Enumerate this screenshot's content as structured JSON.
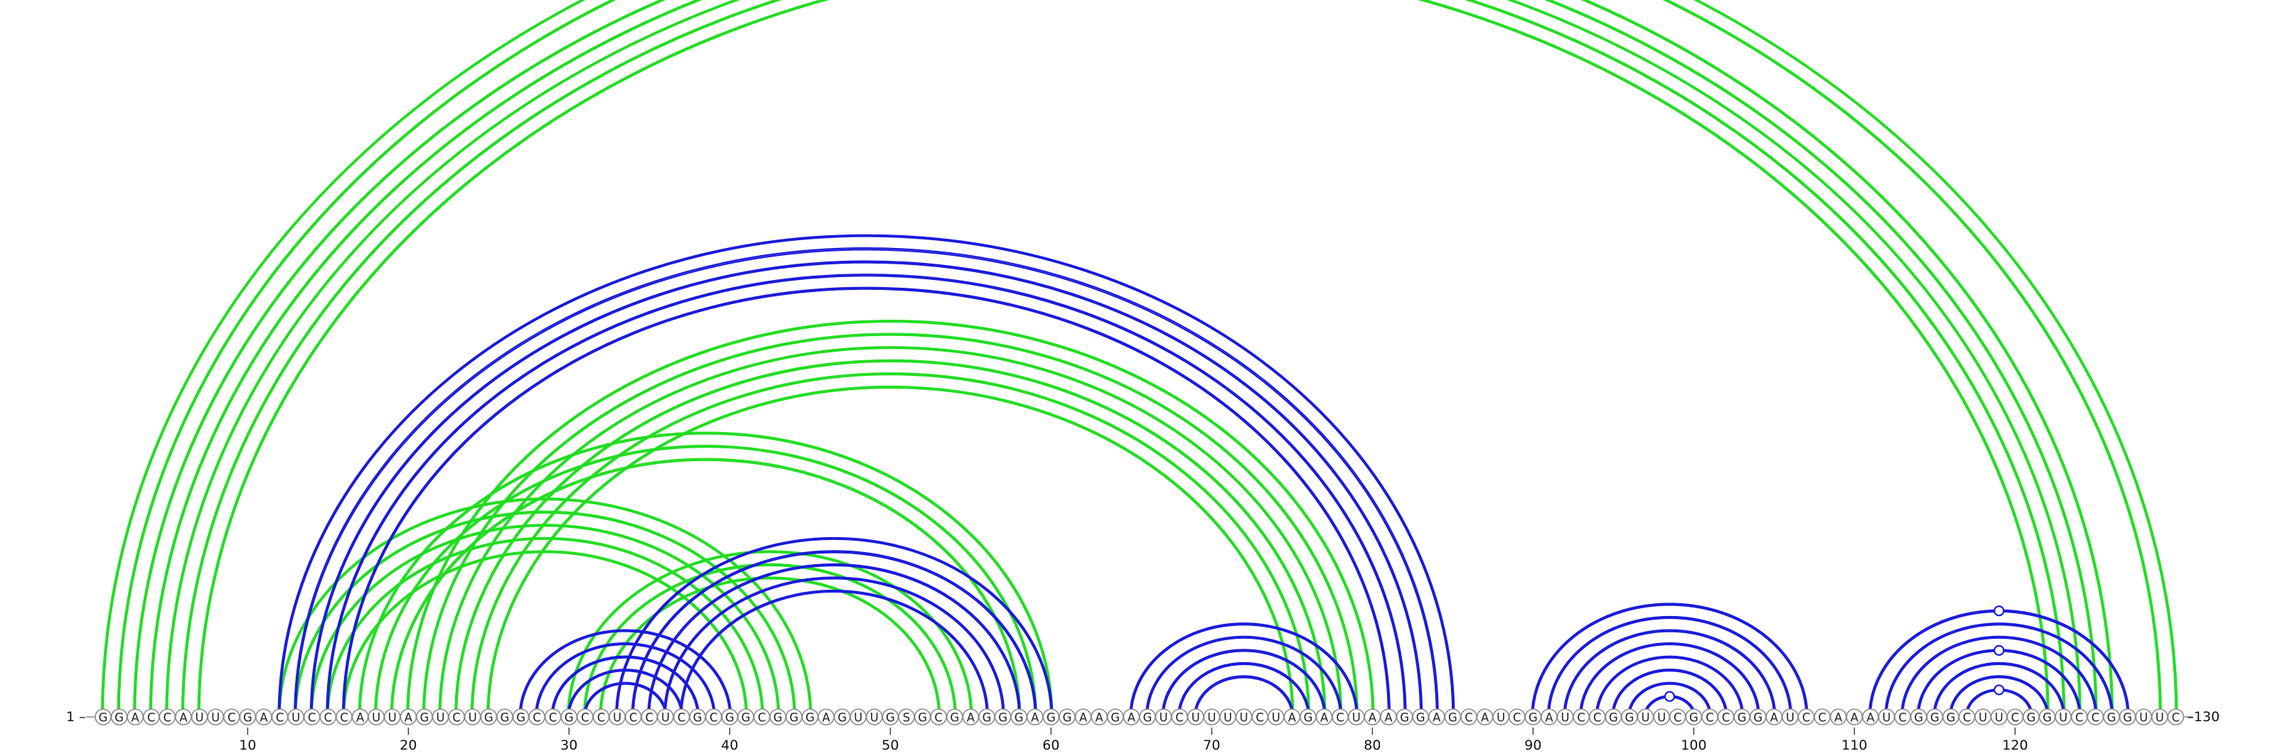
{
  "sequence": "GGACCAUUCGACUCCCAUUAGUCUGGGCCGCCUCCUCGCGGCGGGAGUUGSGCGAGGGAGGAAGAGUCUUUUCUAGACUAAGGAGCAUCGAUCCGGUUCGCCGGAUCCAAAUCGGGCUUCGGUCCGGUUC",
  "start_label": "1 –",
  "end_label": "–130",
  "ticks": [
    10,
    20,
    30,
    40,
    50,
    60,
    70,
    80,
    90,
    100,
    110,
    120
  ],
  "colors": {
    "green": "#22dd22",
    "blue": "#1a1adb",
    "backbone": "#8a8a8a"
  },
  "arcs": {
    "green": [
      [
        1,
        130
      ],
      [
        2,
        129
      ],
      [
        3,
        126
      ],
      [
        4,
        125
      ],
      [
        5,
        124
      ],
      [
        6,
        123
      ],
      [
        7,
        122
      ],
      [
        12,
        45
      ],
      [
        13,
        44
      ],
      [
        14,
        43
      ],
      [
        15,
        42
      ],
      [
        16,
        41
      ],
      [
        20,
        80
      ],
      [
        21,
        79
      ],
      [
        22,
        78
      ],
      [
        23,
        77
      ],
      [
        24,
        76
      ],
      [
        25,
        75
      ],
      [
        17,
        60
      ],
      [
        18,
        59
      ],
      [
        19,
        58
      ],
      [
        30,
        55
      ],
      [
        31,
        54
      ],
      [
        32,
        53
      ]
    ],
    "blue": [
      [
        12,
        85
      ],
      [
        13,
        84
      ],
      [
        14,
        83
      ],
      [
        15,
        82
      ],
      [
        16,
        81
      ],
      [
        27,
        40
      ],
      [
        28,
        39
      ],
      [
        29,
        38
      ],
      [
        30,
        37
      ],
      [
        31,
        36
      ],
      [
        33,
        60
      ],
      [
        34,
        59
      ],
      [
        35,
        58
      ],
      [
        36,
        57
      ],
      [
        37,
        56
      ],
      [
        65,
        79
      ],
      [
        66,
        78
      ],
      [
        67,
        77
      ],
      [
        68,
        76
      ],
      [
        69,
        75
      ],
      [
        90,
        107
      ],
      [
        91,
        106
      ],
      [
        92,
        105
      ],
      [
        93,
        104
      ],
      [
        94,
        103
      ],
      [
        95,
        102
      ],
      [
        96,
        101
      ],
      [
        97,
        100
      ],
      [
        111,
        127
      ],
      [
        112,
        126
      ],
      [
        113,
        125
      ],
      [
        114,
        124
      ],
      [
        115,
        123
      ],
      [
        116,
        122
      ],
      [
        117,
        121
      ]
    ]
  },
  "markers": [
    {
      "pair": [
        1,
        130
      ],
      "color": "green"
    },
    {
      "pair": [
        97,
        100
      ],
      "color": "blue"
    },
    {
      "pair": [
        111,
        127
      ],
      "color": "blue"
    },
    {
      "pair": [
        114,
        124
      ],
      "color": "blue"
    },
    {
      "pair": [
        117,
        121
      ],
      "color": "blue"
    }
  ]
}
